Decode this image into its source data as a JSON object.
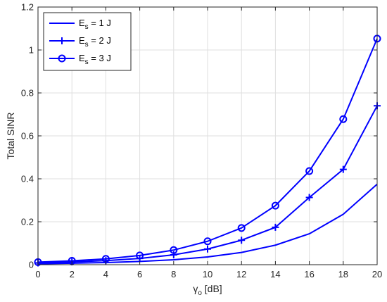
{
  "chart_data": {
    "type": "line",
    "xlabel": {
      "symbol": "γ",
      "sub": "o",
      "unit": " [dB]"
    },
    "ylabel": "Total SINR",
    "xlim": [
      0,
      20
    ],
    "ylim": [
      0,
      1.2
    ],
    "xticks": [
      0,
      2,
      4,
      6,
      8,
      10,
      12,
      14,
      16,
      18,
      20
    ],
    "yticks": [
      0,
      0.2,
      0.4,
      0.6,
      0.8,
      1,
      1.2
    ],
    "grid": true,
    "legend_position": "top-left",
    "x": [
      0,
      2,
      4,
      6,
      8,
      10,
      12,
      14,
      16,
      18,
      20
    ],
    "series": [
      {
        "name": {
          "main": "E",
          "sub": "s",
          "rest": " = 1 J"
        },
        "marker": "none",
        "color": "#0000ff",
        "values": [
          0.004,
          0.007,
          0.01,
          0.015,
          0.023,
          0.036,
          0.057,
          0.091,
          0.144,
          0.235,
          0.375
        ]
      },
      {
        "name": {
          "main": "E",
          "sub": "s",
          "rest": " = 2 J"
        },
        "marker": "plus",
        "color": "#0000ff",
        "values": [
          0.008,
          0.013,
          0.019,
          0.029,
          0.046,
          0.073,
          0.114,
          0.174,
          0.313,
          0.444,
          0.74
        ]
      },
      {
        "name": {
          "main": "E",
          "sub": "s",
          "rest": " = 3 J"
        },
        "marker": "circle",
        "color": "#0000ff",
        "values": [
          0.012,
          0.018,
          0.027,
          0.043,
          0.068,
          0.109,
          0.171,
          0.275,
          0.436,
          0.678,
          1.053
        ]
      }
    ]
  }
}
